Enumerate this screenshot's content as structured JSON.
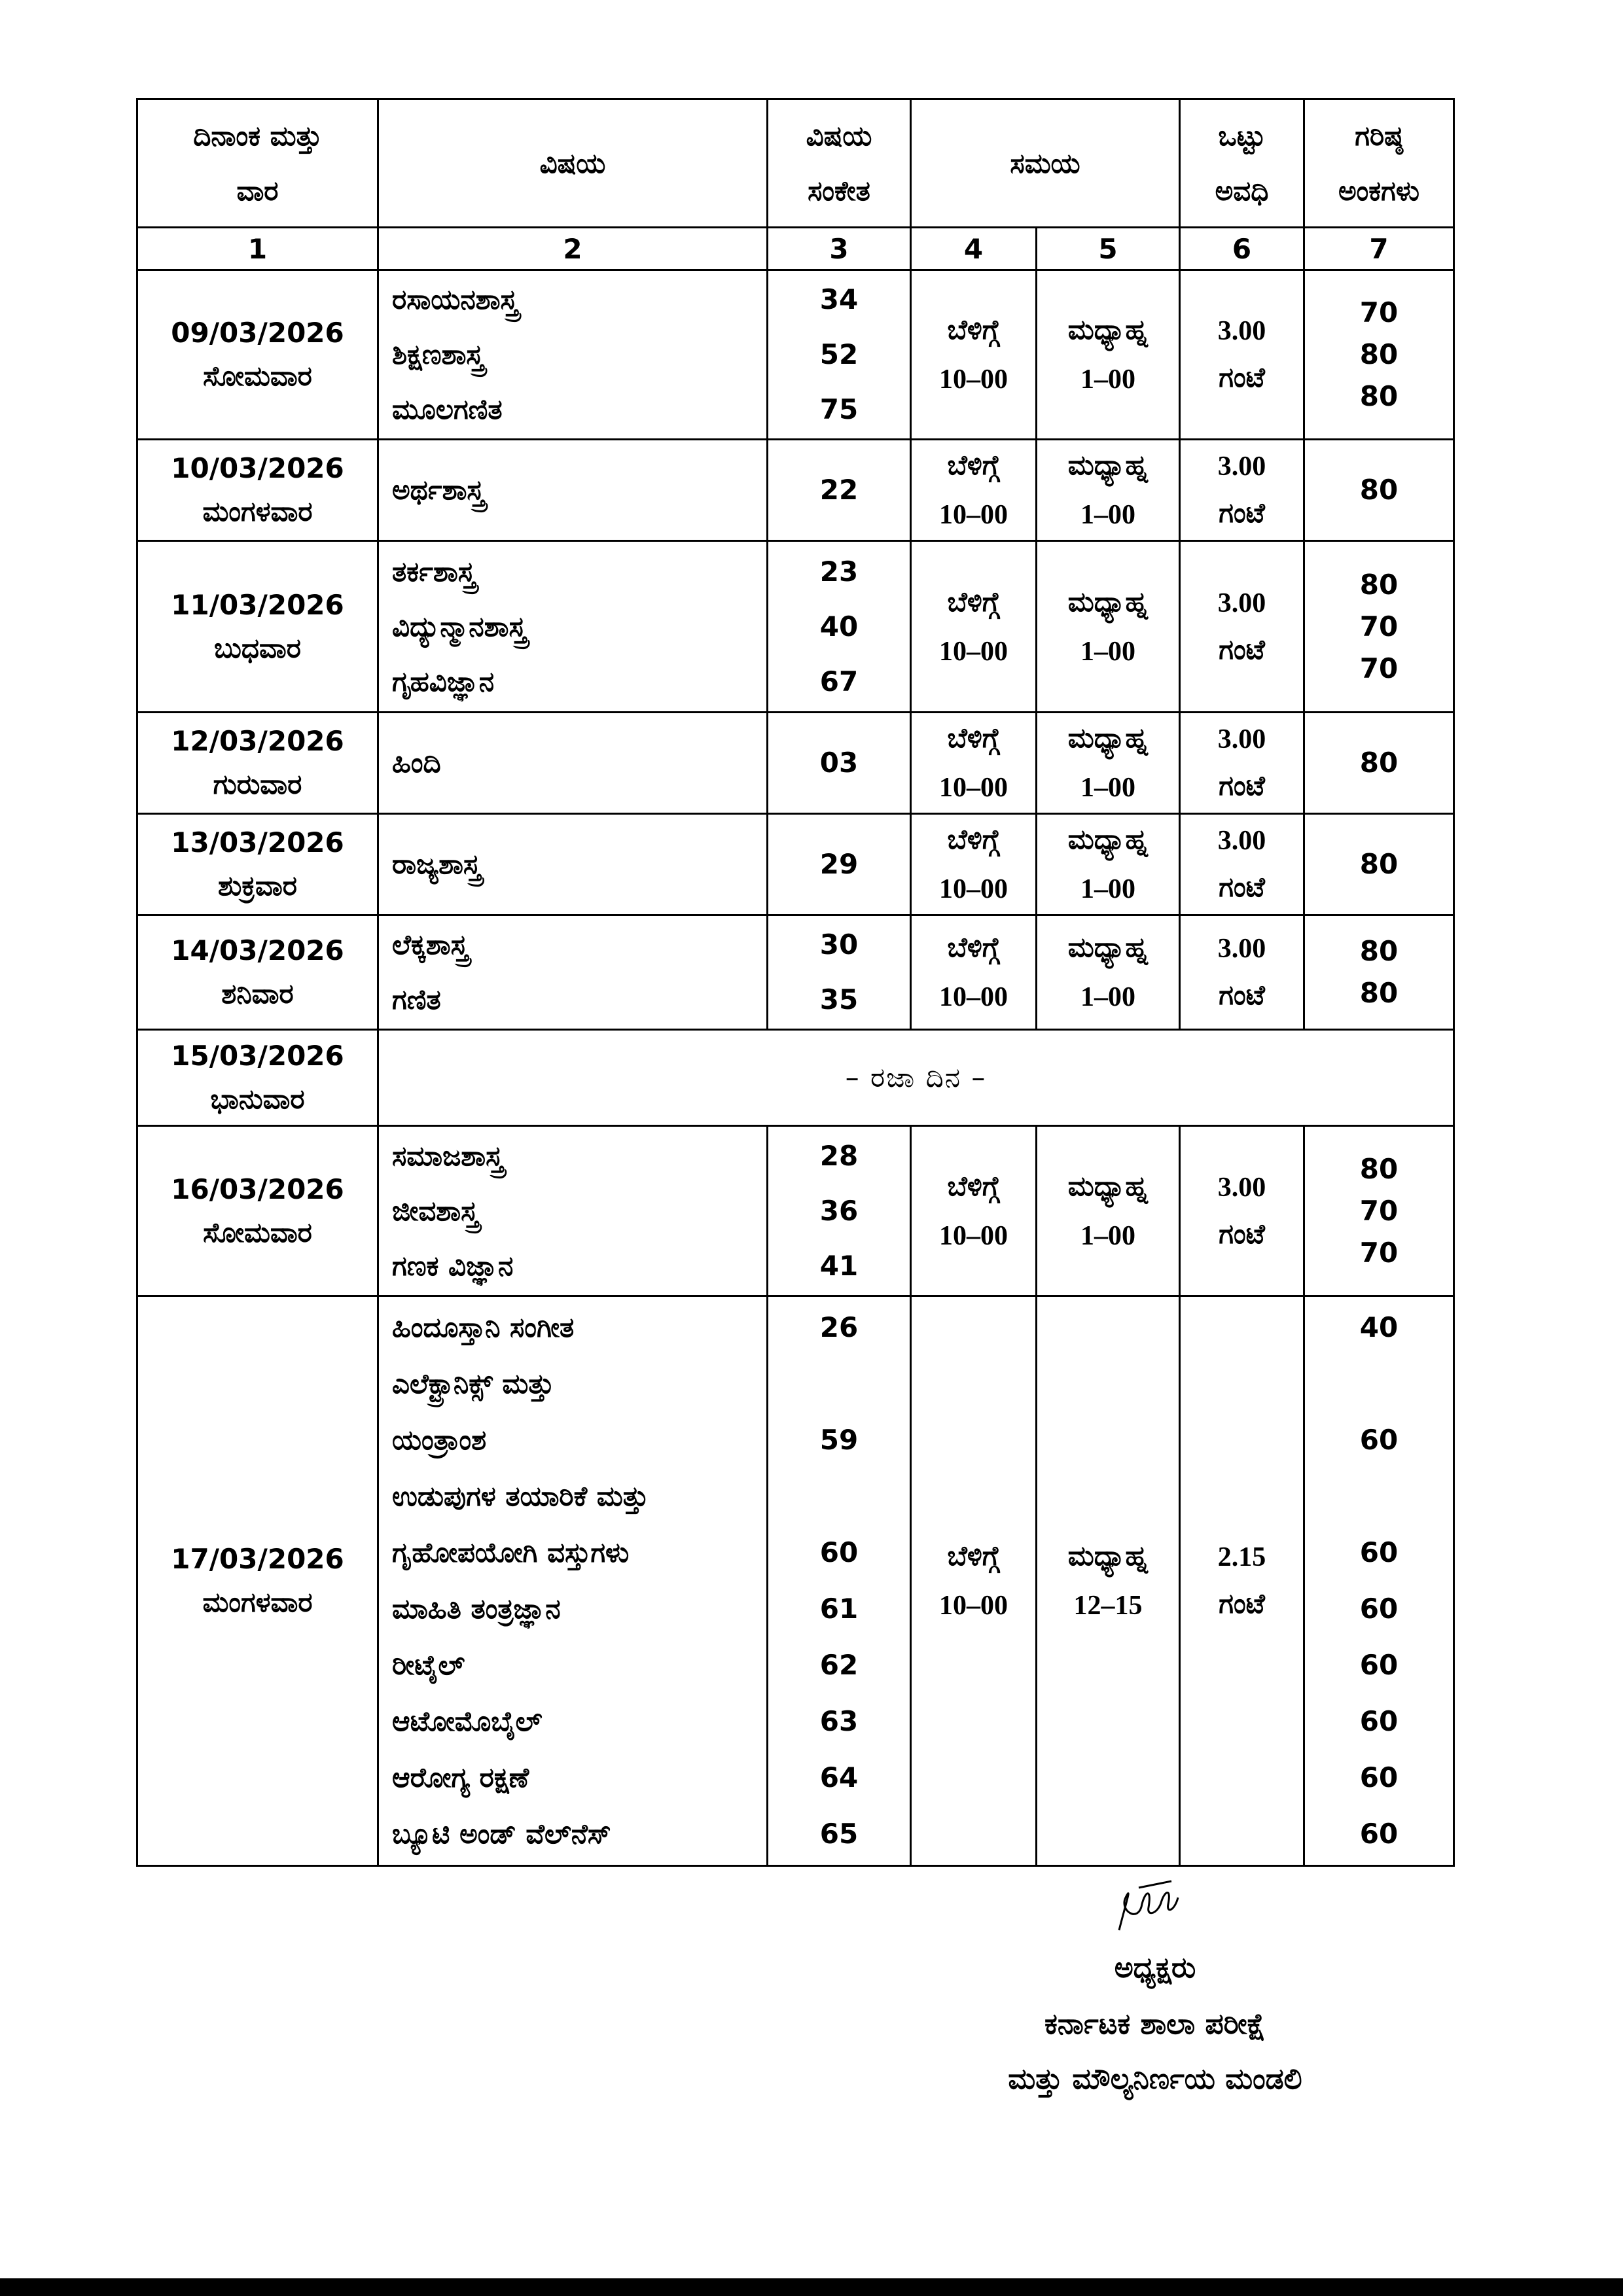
{
  "headers": {
    "date_day": [
      "ದಿನಾಂಕ ಮತ್ತು",
      "ವಾರ"
    ],
    "subject": "ವಿಷಯ",
    "code": [
      "ವಿಷಯ",
      "ಸಂಕೇತ"
    ],
    "time": "ಸಮಯ",
    "duration": [
      "ಒಟ್ಟು",
      "ಅವಧಿ"
    ],
    "max_marks": [
      "ಗರಿಷ್ಠ",
      "ಅಂಕಗಳು"
    ]
  },
  "column_numbers": [
    "1",
    "2",
    "3",
    "4",
    "5",
    "6",
    "7"
  ],
  "rows": [
    {
      "date": "09/03/2026",
      "day": "ಸೋಮವಾರ",
      "subjects": [
        "ರಸಾಯನಶಾಸ್ತ್ರ",
        "ಶಿಕ್ಷಣಶಾಸ್ತ್ರ",
        "ಮೂಲಗಣಿತ"
      ],
      "codes": [
        "34",
        "52",
        "75"
      ],
      "start": [
        "ಬೆಳಿಗ್ಗೆ",
        "10–00"
      ],
      "end": [
        "ಮಧ್ಯಾಹ್ನ",
        "1–00"
      ],
      "duration": [
        "3.00",
        "ಗಂಟೆ"
      ],
      "marks": [
        "70",
        "80",
        "80"
      ]
    },
    {
      "date": "10/03/2026",
      "day": "ಮಂಗಳವಾರ",
      "subjects": [
        "ಅರ್ಥಶಾಸ್ತ್ರ"
      ],
      "codes": [
        "22"
      ],
      "start": [
        "ಬೆಳಿಗ್ಗೆ",
        "10–00"
      ],
      "end": [
        "ಮಧ್ಯಾಹ್ನ",
        "1–00"
      ],
      "duration": [
        "3.00",
        "ಗಂಟೆ"
      ],
      "marks": [
        "80"
      ]
    },
    {
      "date": "11/03/2026",
      "day": "ಬುಧವಾರ",
      "subjects": [
        "ತರ್ಕಶಾಸ್ತ್ರ",
        "ವಿದ್ಯುನ್ಮಾನಶಾಸ್ತ್ರ",
        "ಗೃಹವಿಜ್ಞಾನ"
      ],
      "codes": [
        "23",
        "40",
        "67"
      ],
      "start": [
        "ಬೆಳಿಗ್ಗೆ",
        "10–00"
      ],
      "end": [
        "ಮಧ್ಯಾಹ್ನ",
        "1–00"
      ],
      "duration": [
        "3.00",
        "ಗಂಟೆ"
      ],
      "marks": [
        "80",
        "70",
        "70"
      ]
    },
    {
      "date": "12/03/2026",
      "day": "ಗುರುವಾರ",
      "subjects": [
        "ಹಿಂದಿ"
      ],
      "codes": [
        "03"
      ],
      "start": [
        "ಬೆಳಿಗ್ಗೆ",
        "10–00"
      ],
      "end": [
        "ಮಧ್ಯಾಹ್ನ",
        "1–00"
      ],
      "duration": [
        "3.00",
        "ಗಂಟೆ"
      ],
      "marks": [
        "80"
      ]
    },
    {
      "date": "13/03/2026",
      "day": "ಶುಕ್ರವಾರ",
      "subjects": [
        "ರಾಜ್ಯಶಾಸ್ತ್ರ"
      ],
      "codes": [
        "29"
      ],
      "start": [
        "ಬೆಳಿಗ್ಗೆ",
        "10–00"
      ],
      "end": [
        "ಮಧ್ಯಾಹ್ನ",
        "1–00"
      ],
      "duration": [
        "3.00",
        "ಗಂಟೆ"
      ],
      "marks": [
        "80"
      ]
    },
    {
      "date": "14/03/2026",
      "day": "ಶನಿವಾರ",
      "subjects": [
        "ಲೆಕ್ಕಶಾಸ್ತ್ರ",
        "ಗಣಿತ"
      ],
      "codes": [
        "30",
        "35"
      ],
      "start": [
        "ಬೆಳಿಗ್ಗೆ",
        "10–00"
      ],
      "end": [
        "ಮಧ್ಯಾಹ್ನ",
        "1–00"
      ],
      "duration": [
        "3.00",
        "ಗಂಟೆ"
      ],
      "marks": [
        "80",
        "80"
      ]
    },
    {
      "date": "15/03/2026",
      "day": "ಭಾನುವಾರ",
      "holiday": "–  ರಜಾ ದಿನ –"
    },
    {
      "date": "16/03/2026",
      "day": "ಸೋಮವಾರ",
      "subjects": [
        "ಸಮಾಜಶಾಸ್ತ್ರ",
        "ಜೀವಶಾಸ್ತ್ರ",
        "ಗಣಕ ವಿಜ್ಞಾನ"
      ],
      "codes": [
        "28",
        "36",
        "41"
      ],
      "start": [
        "ಬೆಳಿಗ್ಗೆ",
        "10–00"
      ],
      "end": [
        "ಮಧ್ಯಾಹ್ನ",
        "1–00"
      ],
      "duration": [
        "3.00",
        "ಗಂಟೆ"
      ],
      "marks": [
        "80",
        "70",
        "70"
      ]
    },
    {
      "date": "17/03/2026",
      "day": "ಮಂಗಳವಾರ",
      "subjects": [
        "ಹಿಂದೂಸ್ತಾನಿ ಸಂಗೀತ",
        "ಎಲೆಕ್ಟ್ರಾನಿಕ್ಸ್ ಮತ್ತು",
        "ಯಂತ್ರಾಂಶ",
        "ಉಡುಪುಗಳ ತಯಾರಿಕೆ ಮತ್ತು",
        "ಗೃಹೋಪಯೋಗಿ ವಸ್ತುಗಳು",
        "ಮಾಹಿತಿ ತಂತ್ರಜ್ಞಾನ",
        "ರೀಟೈಲ್",
        "ಆಟೋಮೊಬೈಲ್",
        "ಆರೋಗ್ಯ ರಕ್ಷಣೆ",
        "ಬ್ಯೂಟಿ ಅಂಡ್ ವೆಲ್‌ನೆಸ್"
      ],
      "codes": [
        "26",
        "",
        "59",
        "",
        "60",
        "61",
        "62",
        "63",
        "64",
        "65"
      ],
      "start": [
        "ಬೆಳಿಗ್ಗೆ",
        "10–00"
      ],
      "end": [
        "ಮಧ್ಯಾಹ್ನ",
        "12–15"
      ],
      "duration": [
        "2.15",
        "ಗಂಟೆ"
      ],
      "marks": [
        "40",
        "",
        "60",
        "",
        "60",
        "60",
        "60",
        "60",
        "60",
        "60"
      ],
      "aligned": true
    }
  ],
  "signature": {
    "title": "ಅಧ್ಯಕ್ಷರು",
    "org_line1": "ಕರ್ನಾಟಕ ಶಾಲಾ ಪರೀಕ್ಷೆ",
    "org_line2": "ಮತ್ತು ಮೌಲ್ಯನಿರ್ಣಯ ಮಂಡಲಿ"
  }
}
